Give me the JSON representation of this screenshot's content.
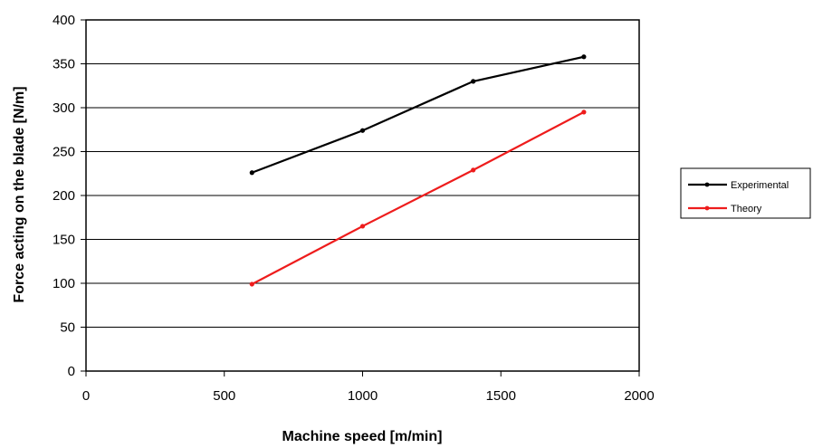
{
  "chart_data": {
    "type": "line",
    "title": "",
    "xlabel": "Machine speed [m/min]",
    "ylabel": "Force acting on the blade [N/m]",
    "xlim": [
      0,
      2000
    ],
    "ylim": [
      0,
      400
    ],
    "xticks": [
      0,
      500,
      1000,
      1500,
      2000
    ],
    "yticks": [
      0,
      50,
      100,
      150,
      200,
      250,
      300,
      350,
      400
    ],
    "grid": "horizontal",
    "legend_position": "right",
    "series": [
      {
        "name": "Experimental",
        "color": "#000000",
        "x": [
          600,
          1000,
          1400,
          1800
        ],
        "y": [
          226,
          274,
          330,
          358
        ]
      },
      {
        "name": "Theory",
        "color": "#ee1c1c",
        "x": [
          600,
          1000,
          1400,
          1800
        ],
        "y": [
          99,
          165,
          229,
          295
        ]
      }
    ]
  }
}
